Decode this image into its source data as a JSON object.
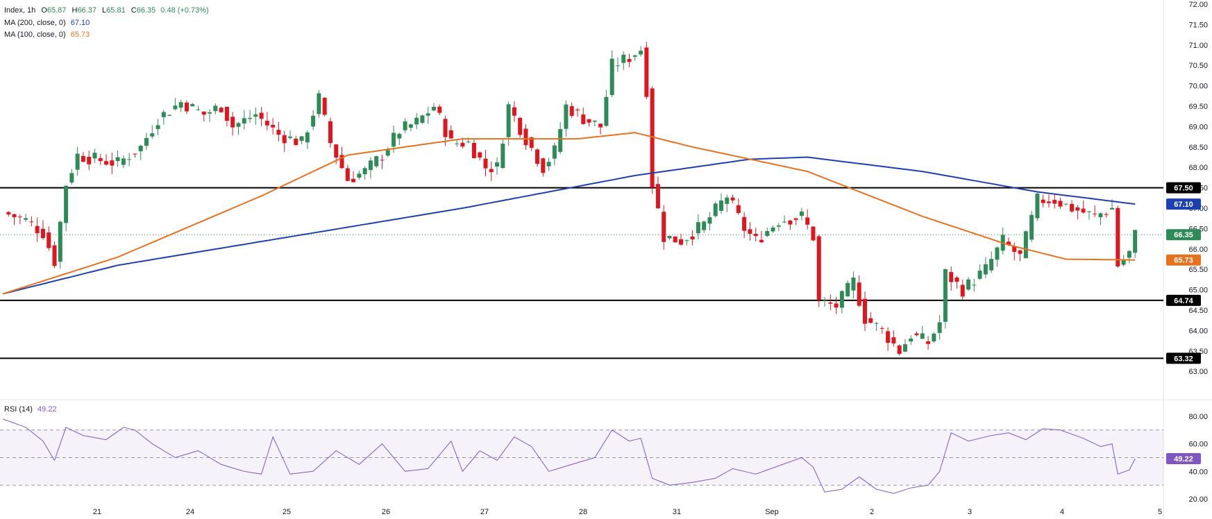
{
  "legend": {
    "symbol": "Index, 1h",
    "ohlc": [
      {
        "k": "O",
        "v": "65.87"
      },
      {
        "k": "H",
        "v": "66.37"
      },
      {
        "k": "L",
        "v": "65.81"
      },
      {
        "k": "C",
        "v": "66.35"
      }
    ],
    "change": "0.48 (+0.73%)",
    "ma200": {
      "label": "MA (200, close, 0)",
      "value": "67.10",
      "color": "#1e3fb0"
    },
    "ma100": {
      "label": "MA (100, close, 0)",
      "value": "65.73",
      "color": "#e8711d"
    },
    "rsi": {
      "label": "RSI (14)",
      "value": "49.22",
      "color": "#7e57c2"
    }
  },
  "colors": {
    "up": "#2e8b57",
    "down": "#e0161e",
    "level_line": "#000000",
    "price_line": "#2e8b57",
    "axis_text": "#131722"
  },
  "chart_data": [
    {
      "type": "candlestick",
      "title": "",
      "timeframe": "1h",
      "x_ticks": [
        "21",
        "24",
        "25",
        "26",
        "27",
        "28",
        "31",
        "Sep",
        "2",
        "3",
        "4",
        "5"
      ],
      "y_ticks": [
        "63.00",
        "63.50",
        "64.00",
        "64.50",
        "65.00",
        "65.50",
        "66.00",
        "66.50",
        "67.00",
        "67.50",
        "68.00",
        "68.50",
        "69.00",
        "69.50",
        "70.00",
        "70.50",
        "71.00",
        "71.50",
        "72.00"
      ],
      "ylim": [
        62.8,
        72.0
      ],
      "horizontal_levels": [
        67.5,
        64.74,
        63.32
      ],
      "last_price": 66.35,
      "price_tags": [
        {
          "label": "67.50",
          "value": 67.5,
          "bg": "#000000",
          "fg": "#ffffff"
        },
        {
          "label": "67.10",
          "value": 67.1,
          "bg": "#1e3fb0",
          "fg": "#ffffff"
        },
        {
          "label": "66.35",
          "value": 66.35,
          "bg": "#2e8b57",
          "fg": "#ffffff"
        },
        {
          "label": "65.73",
          "value": 65.73,
          "bg": "#e8711d",
          "fg": "#ffffff"
        },
        {
          "label": "64.74",
          "value": 64.74,
          "bg": "#000000",
          "fg": "#ffffff"
        },
        {
          "label": "63.32",
          "value": 63.32,
          "bg": "#000000",
          "fg": "#ffffff"
        }
      ],
      "close_path": [
        {
          "bar": 0,
          "close": 66.9
        },
        {
          "bar": 4,
          "close": 66.7
        },
        {
          "bar": 7,
          "close": 66.4
        },
        {
          "bar": 9,
          "close": 65.7
        },
        {
          "bar": 11,
          "close": 67.6
        },
        {
          "bar": 13,
          "close": 68.3
        },
        {
          "bar": 16,
          "close": 68.2
        },
        {
          "bar": 20,
          "close": 68.1
        },
        {
          "bar": 24,
          "close": 68.5
        },
        {
          "bar": 27,
          "close": 69.2
        },
        {
          "bar": 31,
          "close": 69.6
        },
        {
          "bar": 35,
          "close": 69.3
        },
        {
          "bar": 38,
          "close": 69.5
        },
        {
          "bar": 40,
          "close": 69.0
        },
        {
          "bar": 44,
          "close": 69.3
        },
        {
          "bar": 48,
          "close": 68.8
        },
        {
          "bar": 52,
          "close": 68.6
        },
        {
          "bar": 55,
          "close": 69.7
        },
        {
          "bar": 57,
          "close": 68.6
        },
        {
          "bar": 60,
          "close": 67.7
        },
        {
          "bar": 63,
          "close": 67.9
        },
        {
          "bar": 66,
          "close": 68.3
        },
        {
          "bar": 69,
          "close": 68.9
        },
        {
          "bar": 72,
          "close": 69.1
        },
        {
          "bar": 75,
          "close": 69.5
        },
        {
          "bar": 78,
          "close": 68.6
        },
        {
          "bar": 81,
          "close": 68.6
        },
        {
          "bar": 84,
          "close": 68.0
        },
        {
          "bar": 86,
          "close": 68.0
        },
        {
          "bar": 88,
          "close": 69.5
        },
        {
          "bar": 91,
          "close": 68.7
        },
        {
          "bar": 94,
          "close": 68.0
        },
        {
          "bar": 96,
          "close": 68.4
        },
        {
          "bar": 98,
          "close": 69.5
        },
        {
          "bar": 101,
          "close": 69.2
        },
        {
          "bar": 104,
          "close": 69.0
        },
        {
          "bar": 106,
          "close": 70.5
        },
        {
          "bar": 109,
          "close": 70.7
        },
        {
          "bar": 111,
          "close": 70.9
        },
        {
          "bar": 112,
          "close": 69.9
        },
        {
          "bar": 113,
          "close": 67.6
        },
        {
          "bar": 115,
          "close": 66.3
        },
        {
          "bar": 118,
          "close": 66.2
        },
        {
          "bar": 122,
          "close": 66.6
        },
        {
          "bar": 126,
          "close": 67.3
        },
        {
          "bar": 129,
          "close": 66.5
        },
        {
          "bar": 131,
          "close": 66.2
        },
        {
          "bar": 135,
          "close": 66.7
        },
        {
          "bar": 139,
          "close": 66.8
        },
        {
          "bar": 141,
          "close": 66.3
        },
        {
          "bar": 142,
          "close": 64.7
        },
        {
          "bar": 145,
          "close": 64.6
        },
        {
          "bar": 148,
          "close": 65.2
        },
        {
          "bar": 150,
          "close": 64.3
        },
        {
          "bar": 153,
          "close": 64.0
        },
        {
          "bar": 156,
          "close": 63.5
        },
        {
          "bar": 158,
          "close": 63.9
        },
        {
          "bar": 161,
          "close": 63.7
        },
        {
          "bar": 163,
          "close": 64.2
        },
        {
          "bar": 164,
          "close": 65.4
        },
        {
          "bar": 167,
          "close": 65.0
        },
        {
          "bar": 171,
          "close": 65.5
        },
        {
          "bar": 174,
          "close": 66.2
        },
        {
          "bar": 177,
          "close": 65.8
        },
        {
          "bar": 180,
          "close": 67.2
        },
        {
          "bar": 183,
          "close": 67.2
        },
        {
          "bar": 186,
          "close": 67.0
        },
        {
          "bar": 190,
          "close": 66.8
        },
        {
          "bar": 193,
          "close": 67.0
        },
        {
          "bar": 194,
          "close": 65.6
        },
        {
          "bar": 196,
          "close": 65.9
        },
        {
          "bar": 197,
          "close": 66.35
        }
      ],
      "series": [
        {
          "name": "MA (200, close, 0)",
          "color": "#1e3fb0",
          "points": [
            {
              "bar": 0,
              "value": 64.9
            },
            {
              "bar": 20,
              "value": 65.6
            },
            {
              "bar": 50,
              "value": 66.3
            },
            {
              "bar": 80,
              "value": 67.0
            },
            {
              "bar": 110,
              "value": 67.8
            },
            {
              "bar": 130,
              "value": 68.2
            },
            {
              "bar": 140,
              "value": 68.25
            },
            {
              "bar": 160,
              "value": 67.9
            },
            {
              "bar": 180,
              "value": 67.4
            },
            {
              "bar": 197,
              "value": 67.1
            }
          ]
        },
        {
          "name": "MA (100, close, 0)",
          "color": "#e8711d",
          "points": [
            {
              "bar": 0,
              "value": 64.9
            },
            {
              "bar": 20,
              "value": 65.8
            },
            {
              "bar": 45,
              "value": 67.3
            },
            {
              "bar": 60,
              "value": 68.3
            },
            {
              "bar": 80,
              "value": 68.7
            },
            {
              "bar": 100,
              "value": 68.7
            },
            {
              "bar": 110,
              "value": 68.85
            },
            {
              "bar": 120,
              "value": 68.5
            },
            {
              "bar": 140,
              "value": 67.9
            },
            {
              "bar": 160,
              "value": 66.8
            },
            {
              "bar": 175,
              "value": 66.1
            },
            {
              "bar": 185,
              "value": 65.75
            },
            {
              "bar": 197,
              "value": 65.73
            }
          ]
        }
      ]
    },
    {
      "type": "line",
      "title": "",
      "name": "RSI (14)",
      "ylim": [
        17,
        85
      ],
      "y_ticks": [
        "20.00",
        "40.00",
        "60.00",
        "80.00"
      ],
      "levels": [
        30,
        50,
        70
      ],
      "last_value": 49.22,
      "points": [
        {
          "bar": 0,
          "value": 78
        },
        {
          "bar": 4,
          "value": 72
        },
        {
          "bar": 7,
          "value": 62
        },
        {
          "bar": 9,
          "value": 48
        },
        {
          "bar": 11,
          "value": 72
        },
        {
          "bar": 14,
          "value": 66
        },
        {
          "bar": 18,
          "value": 63
        },
        {
          "bar": 21,
          "value": 72
        },
        {
          "bar": 23,
          "value": 70
        },
        {
          "bar": 26,
          "value": 60
        },
        {
          "bar": 30,
          "value": 50
        },
        {
          "bar": 34,
          "value": 55
        },
        {
          "bar": 38,
          "value": 45
        },
        {
          "bar": 42,
          "value": 40
        },
        {
          "bar": 45,
          "value": 38
        },
        {
          "bar": 47,
          "value": 65
        },
        {
          "bar": 50,
          "value": 38
        },
        {
          "bar": 54,
          "value": 40
        },
        {
          "bar": 58,
          "value": 55
        },
        {
          "bar": 62,
          "value": 45
        },
        {
          "bar": 66,
          "value": 60
        },
        {
          "bar": 70,
          "value": 40
        },
        {
          "bar": 74,
          "value": 42
        },
        {
          "bar": 78,
          "value": 62
        },
        {
          "bar": 80,
          "value": 40
        },
        {
          "bar": 83,
          "value": 55
        },
        {
          "bar": 86,
          "value": 48
        },
        {
          "bar": 89,
          "value": 65
        },
        {
          "bar": 92,
          "value": 58
        },
        {
          "bar": 95,
          "value": 40
        },
        {
          "bar": 99,
          "value": 45
        },
        {
          "bar": 103,
          "value": 50
        },
        {
          "bar": 106,
          "value": 70
        },
        {
          "bar": 109,
          "value": 62
        },
        {
          "bar": 111,
          "value": 64
        },
        {
          "bar": 113,
          "value": 35
        },
        {
          "bar": 116,
          "value": 30
        },
        {
          "bar": 120,
          "value": 32
        },
        {
          "bar": 124,
          "value": 35
        },
        {
          "bar": 127,
          "value": 42
        },
        {
          "bar": 131,
          "value": 38
        },
        {
          "bar": 135,
          "value": 44
        },
        {
          "bar": 139,
          "value": 50
        },
        {
          "bar": 141,
          "value": 43
        },
        {
          "bar": 143,
          "value": 25
        },
        {
          "bar": 146,
          "value": 27
        },
        {
          "bar": 149,
          "value": 36
        },
        {
          "bar": 152,
          "value": 27
        },
        {
          "bar": 155,
          "value": 24
        },
        {
          "bar": 158,
          "value": 28
        },
        {
          "bar": 161,
          "value": 30
        },
        {
          "bar": 163,
          "value": 40
        },
        {
          "bar": 165,
          "value": 68
        },
        {
          "bar": 168,
          "value": 62
        },
        {
          "bar": 172,
          "value": 66
        },
        {
          "bar": 175,
          "value": 68
        },
        {
          "bar": 178,
          "value": 63
        },
        {
          "bar": 181,
          "value": 71
        },
        {
          "bar": 184,
          "value": 70
        },
        {
          "bar": 188,
          "value": 64
        },
        {
          "bar": 191,
          "value": 58
        },
        {
          "bar": 193,
          "value": 60
        },
        {
          "bar": 194,
          "value": 38
        },
        {
          "bar": 196,
          "value": 41
        },
        {
          "bar": 197,
          "value": 49.22
        }
      ]
    }
  ]
}
